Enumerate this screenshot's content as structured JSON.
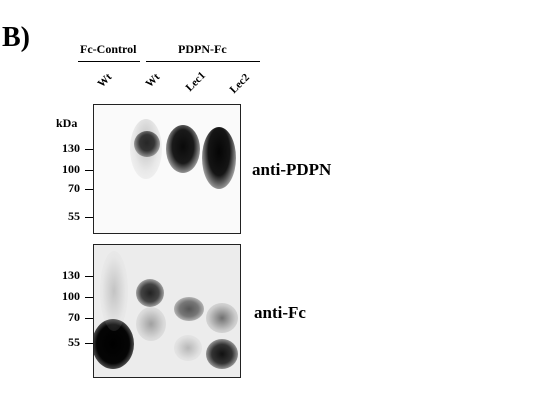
{
  "panel": "B)",
  "groups": {
    "control": "Fc-Control",
    "fusion": "PDPN-Fc"
  },
  "lanes": [
    "Wt",
    "Wt",
    "Lec1",
    "Lec2"
  ],
  "units": "kDa",
  "blot_top": {
    "antibody": "anti-PDPN",
    "markers": [
      "130",
      "100",
      "70",
      "55"
    ]
  },
  "blot_bottom": {
    "antibody": "anti-Fc",
    "markers": [
      "130",
      "100",
      "70",
      "55"
    ]
  }
}
